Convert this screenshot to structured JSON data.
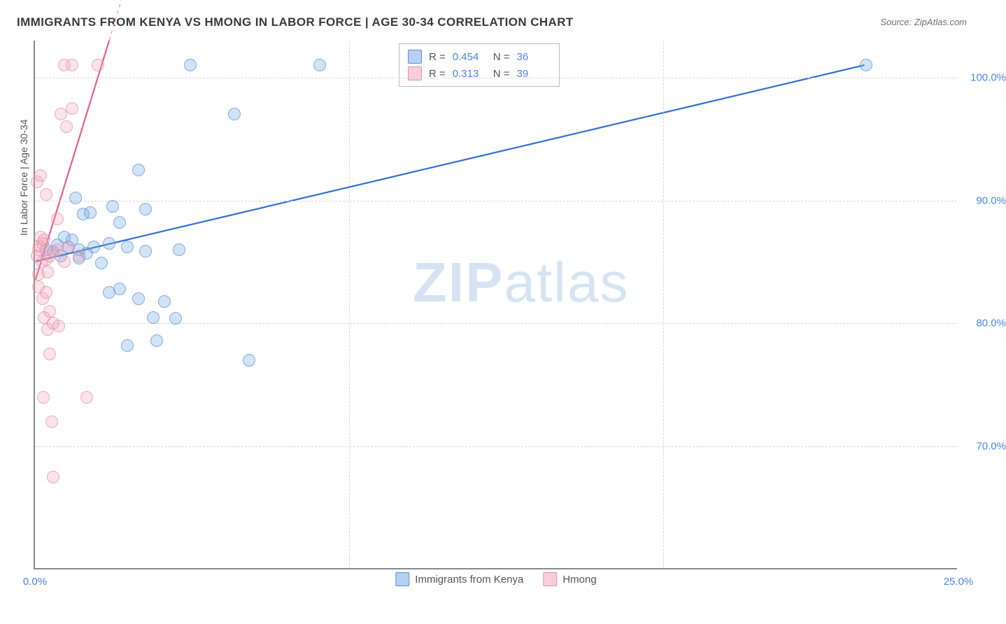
{
  "title": "IMMIGRANTS FROM KENYA VS HMONG IN LABOR FORCE | AGE 30-34 CORRELATION CHART",
  "source": "Source: ZipAtlas.com",
  "ylabel": "In Labor Force | Age 30-34",
  "watermark_zip": "ZIP",
  "watermark_atlas": "atlas",
  "chart": {
    "type": "scatter",
    "background_color": "#ffffff",
    "grid_color": "#d8d8d8",
    "axis_color": "#888888",
    "xlim": [
      0,
      25
    ],
    "ylim": [
      60,
      103
    ],
    "xticks": [
      0,
      25
    ],
    "xtick_labels": [
      "0.0%",
      "25.0%"
    ],
    "yticks": [
      70,
      80,
      90,
      100
    ],
    "ytick_labels": [
      "70.0%",
      "80.0%",
      "90.0%",
      "100.0%"
    ],
    "x_gridlines": [
      8.5,
      17.0
    ],
    "point_radius": 9,
    "label_fontsize": 14,
    "tick_fontsize": 15,
    "tick_color": "#4a86e8",
    "series": [
      {
        "name": "Immigrants from Kenya",
        "color_key": "blue",
        "fill": "rgba(120,170,230,0.45)",
        "stroke": "#5b8fd6",
        "R": "0.454",
        "N": "36",
        "trend": {
          "x1": 0,
          "y1": 85,
          "x2": 22.5,
          "y2": 101,
          "stroke": "#2f6fd0",
          "width": 2.2,
          "dash": ""
        },
        "points": [
          [
            0.3,
            86
          ],
          [
            0.5,
            85.8
          ],
          [
            0.6,
            86.4
          ],
          [
            0.7,
            85.5
          ],
          [
            0.8,
            87
          ],
          [
            0.9,
            86.2
          ],
          [
            1.0,
            86.8
          ],
          [
            1.1,
            90.2
          ],
          [
            1.2,
            86.0
          ],
          [
            1.2,
            85.3
          ],
          [
            1.3,
            88.9
          ],
          [
            1.4,
            85.7
          ],
          [
            1.5,
            89.0
          ],
          [
            1.6,
            86.2
          ],
          [
            1.8,
            84.9
          ],
          [
            2.0,
            86.5
          ],
          [
            2.0,
            82.5
          ],
          [
            2.1,
            89.5
          ],
          [
            2.3,
            88.2
          ],
          [
            2.3,
            82.8
          ],
          [
            2.5,
            78.2
          ],
          [
            2.5,
            86.2
          ],
          [
            2.8,
            82.0
          ],
          [
            2.8,
            92.5
          ],
          [
            3.0,
            89.3
          ],
          [
            3.0,
            85.9
          ],
          [
            3.2,
            80.5
          ],
          [
            3.3,
            78.6
          ],
          [
            3.5,
            81.8
          ],
          [
            3.8,
            80.4
          ],
          [
            3.9,
            86.0
          ],
          [
            4.2,
            101.0
          ],
          [
            5.4,
            97.0
          ],
          [
            5.8,
            77.0
          ],
          [
            7.7,
            101.0
          ],
          [
            22.5,
            101.0
          ]
        ]
      },
      {
        "name": "Hmong",
        "color_key": "pink",
        "fill": "rgba(240,160,180,0.40)",
        "stroke": "#e48fa8",
        "R": "0.313",
        "N": "39",
        "trend": {
          "x1": 0,
          "y1": 83.5,
          "x2": 2.0,
          "y2": 103,
          "stroke": "#e85d8a",
          "width": 2.2,
          "dash": ""
        },
        "trend_ext": {
          "x1": 2.0,
          "y1": 103,
          "x2": 2.6,
          "y2": 109,
          "stroke": "#f0a6b9",
          "width": 1.5,
          "dash": "5,5"
        },
        "points": [
          [
            0.05,
            91.5
          ],
          [
            0.05,
            85.5
          ],
          [
            0.1,
            86.0
          ],
          [
            0.1,
            84.0
          ],
          [
            0.1,
            83.0
          ],
          [
            0.12,
            86.3
          ],
          [
            0.15,
            92.0
          ],
          [
            0.15,
            87.0
          ],
          [
            0.18,
            85.0
          ],
          [
            0.2,
            82.0
          ],
          [
            0.2,
            86.5
          ],
          [
            0.22,
            74.0
          ],
          [
            0.25,
            80.5
          ],
          [
            0.25,
            86.8
          ],
          [
            0.3,
            82.5
          ],
          [
            0.3,
            85.2
          ],
          [
            0.3,
            90.5
          ],
          [
            0.35,
            84.2
          ],
          [
            0.35,
            79.5
          ],
          [
            0.4,
            81.0
          ],
          [
            0.4,
            85.5
          ],
          [
            0.4,
            77.5
          ],
          [
            0.45,
            72.0
          ],
          [
            0.5,
            80.0
          ],
          [
            0.5,
            85.8
          ],
          [
            0.5,
            67.5
          ],
          [
            0.6,
            86.0
          ],
          [
            0.6,
            88.5
          ],
          [
            0.65,
            79.8
          ],
          [
            0.7,
            97.0
          ],
          [
            0.8,
            85.0
          ],
          [
            0.8,
            101.0
          ],
          [
            0.85,
            96.0
          ],
          [
            0.9,
            86.2
          ],
          [
            1.0,
            101.0
          ],
          [
            1.0,
            97.5
          ],
          [
            1.2,
            85.5
          ],
          [
            1.4,
            74.0
          ],
          [
            1.7,
            101.0
          ]
        ]
      }
    ]
  },
  "stat_box": {
    "rows": [
      {
        "swatch": "blue",
        "R_label": "R =",
        "R": "0.454",
        "N_label": "N =",
        "N": "36"
      },
      {
        "swatch": "pink",
        "R_label": "R =",
        "R": "0.313",
        "N_label": "N =",
        "N": "39"
      }
    ]
  },
  "legend": [
    {
      "swatch": "blue",
      "label": "Immigrants from Kenya"
    },
    {
      "swatch": "pink",
      "label": "Hmong"
    }
  ]
}
